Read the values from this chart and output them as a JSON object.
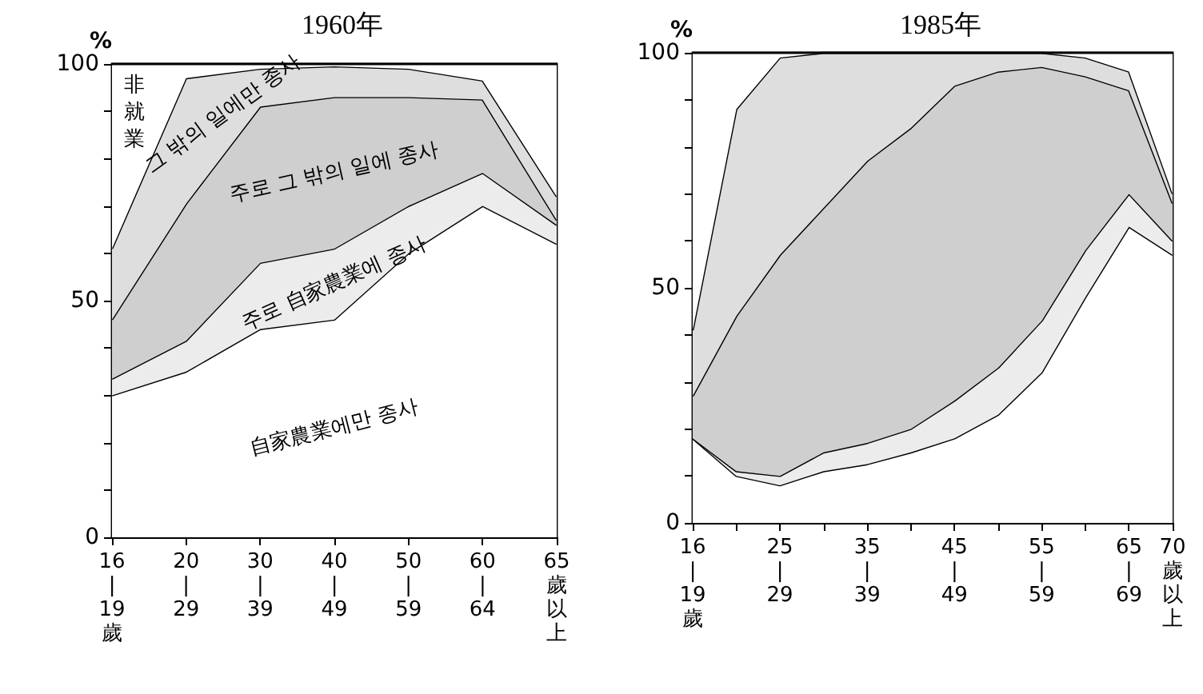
{
  "chart_data": [
    {
      "type": "area",
      "title": "1960年",
      "ylabel": "%",
      "stacked": true,
      "legend": false,
      "grid": false,
      "categories": [
        "16\n|\n19\n歲",
        "20\n|\n29",
        "30\n|\n39",
        "40\n|\n49",
        "50\n|\n59",
        "60\n|\n64",
        "65\n歲以上"
      ],
      "ylim": [
        0,
        100
      ],
      "yticks": [
        0,
        {
          "value": 10,
          "label": null
        },
        {
          "value": 20,
          "label": null
        },
        {
          "value": 30,
          "label": null
        },
        {
          "value": 40,
          "label": null
        },
        50,
        {
          "value": 60,
          "label": null
        },
        {
          "value": 70,
          "label": null
        },
        {
          "value": 80,
          "label": null
        },
        {
          "value": 90,
          "label": null
        },
        100
      ],
      "series": [
        {
          "name": "自家農業에만 종사",
          "color": "#ffffff",
          "values": [
            30,
            35,
            44,
            46,
            60,
            70,
            62
          ]
        },
        {
          "name": "주로 自家農業에 종사",
          "color": "#ececec",
          "values": [
            3.5,
            6.5,
            14,
            15,
            10,
            7,
            4
          ]
        },
        {
          "name": "주로 그 밖의 일에 종사",
          "color": "#cfcfcf",
          "values": [
            12.5,
            29,
            33,
            32,
            23,
            15.5,
            1
          ]
        },
        {
          "name": "그 밖의 일에만 종사",
          "color": "#dedede",
          "values": [
            15,
            26.5,
            8,
            6.5,
            6,
            4,
            5
          ]
        },
        {
          "name": "非就業",
          "color": "#ffffff",
          "values": [
            39,
            3,
            1,
            0.5,
            1,
            3.5,
            28
          ]
        }
      ]
    },
    {
      "type": "area",
      "title": "1985年",
      "ylabel": "%",
      "stacked": true,
      "legend": false,
      "grid": false,
      "categories": [
        "16\n|\n19\n歲",
        null,
        "25\n|\n29",
        null,
        "35\n|\n39",
        null,
        "45\n|\n49",
        null,
        "55\n|\n59",
        null,
        "65\n|\n69",
        "70\n歲以上"
      ],
      "ylim": [
        0,
        100
      ],
      "yticks": [
        0,
        {
          "value": 10,
          "label": null
        },
        {
          "value": 20,
          "label": null
        },
        {
          "value": 30,
          "label": null
        },
        {
          "value": 40,
          "label": null
        },
        50,
        {
          "value": 60,
          "label": null
        },
        {
          "value": 70,
          "label": null
        },
        {
          "value": 80,
          "label": null
        },
        {
          "value": 90,
          "label": null
        },
        100
      ],
      "series": [
        {
          "color": "#ffffff",
          "values": [
            18,
            10,
            8,
            11,
            12.5,
            15,
            18,
            23,
            32,
            48,
            63,
            57
          ]
        },
        {
          "color": "#ececec",
          "values": [
            0,
            1,
            2,
            4,
            4.5,
            5,
            8,
            10,
            11,
            10,
            7,
            3
          ]
        },
        {
          "color": "#cfcfcf",
          "values": [
            9,
            33,
            47,
            52,
            60,
            64,
            67,
            63,
            54,
            37,
            22,
            8
          ]
        },
        {
          "color": "#dedede",
          "values": [
            14,
            44,
            42,
            33,
            23,
            16,
            7,
            4,
            3,
            4,
            4,
            2
          ]
        },
        {
          "color": "#ffffff",
          "values": [
            59,
            12,
            1,
            0,
            0,
            0,
            0,
            0,
            0,
            1,
            4,
            30
          ]
        }
      ]
    }
  ]
}
